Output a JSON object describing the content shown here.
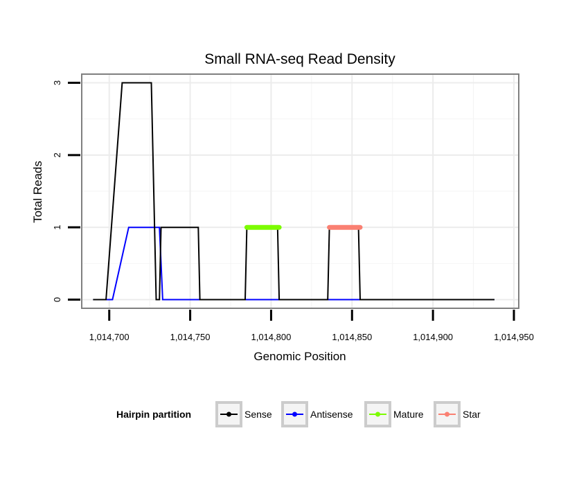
{
  "chart_data": {
    "type": "line",
    "title": "Small RNA-seq Read Density",
    "xlabel": "Genomic Position",
    "ylabel": "Total Reads",
    "xlim": [
      1014683,
      1014953
    ],
    "ylim": [
      -0.12,
      3.12
    ],
    "x_ticks": [
      1014700,
      1014750,
      1014800,
      1014850,
      1014900,
      1014950
    ],
    "x_tick_labels": [
      "1,014,700",
      "1,014,750",
      "1,014,800",
      "1,014,850",
      "1,014,900",
      "1,014,950"
    ],
    "y_ticks": [
      0,
      1,
      2,
      3
    ],
    "y_tick_labels": [
      "0",
      "1",
      "2",
      "3"
    ],
    "grid": true,
    "legend": {
      "title": "Hairpin partition",
      "placement": "bottom",
      "entries": [
        "Sense",
        "Antisense",
        "Mature",
        "Star"
      ]
    },
    "series": [
      {
        "name": "Antisense",
        "color": "#0000ff",
        "x": [
          1014690,
          1014702,
          1014712,
          1014728,
          1014731,
          1014733,
          1014938
        ],
        "y": [
          0,
          0,
          1,
          1,
          1,
          0,
          0
        ]
      },
      {
        "name": "Sense",
        "color": "#000000",
        "x": [
          1014690,
          1014698,
          1014708,
          1014726,
          1014729,
          1014731,
          1014732,
          1014755,
          1014756,
          1014784,
          1014785,
          1014804,
          1014805,
          1014835,
          1014836,
          1014854,
          1014855,
          1014938
        ],
        "y": [
          0,
          0,
          3,
          3,
          0,
          0,
          1,
          1,
          0,
          0,
          1,
          1,
          0,
          0,
          1,
          1,
          0,
          0
        ]
      },
      {
        "name": "Mature",
        "color": "#7cfc00",
        "x": [
          1014785,
          1014805
        ],
        "y": [
          1,
          1
        ]
      },
      {
        "name": "Star",
        "color": "#fa8072",
        "x": [
          1014836,
          1014855
        ],
        "y": [
          1,
          1
        ]
      }
    ]
  }
}
